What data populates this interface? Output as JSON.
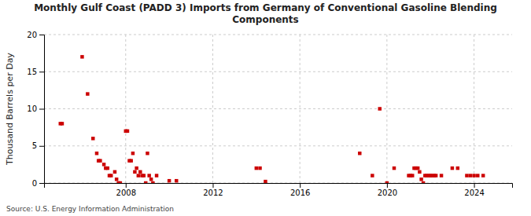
{
  "chart_data": {
    "type": "scatter",
    "title": "Monthly Gulf Coast (PADD 3) Imports from Germany of Conventional Gasoline Blending\nComponents",
    "y_label": "Thousand Barrels per Day",
    "annotations": [
      "Source: U.S. Energy Information Administration"
    ],
    "color": "#cc0000",
    "marker": "square",
    "grid": true,
    "xlim": [
      2004.25,
      2025.75
    ],
    "xticks": [
      2008,
      2012,
      2016,
      2020,
      2024
    ],
    "ylim": [
      0,
      20
    ],
    "yticks": [
      0,
      5,
      10,
      15,
      20
    ],
    "x": [
      2005.0,
      2005.08,
      2006.0,
      2006.25,
      2006.5,
      2006.67,
      2006.75,
      2006.83,
      2007.0,
      2007.08,
      2007.17,
      2007.25,
      2007.33,
      2007.5,
      2007.58,
      2007.67,
      2007.75,
      2008.0,
      2008.08,
      2008.17,
      2008.25,
      2008.33,
      2008.42,
      2008.5,
      2008.58,
      2008.67,
      2008.75,
      2008.83,
      2008.92,
      2009.0,
      2009.08,
      2009.17,
      2009.25,
      2009.42,
      2010.0,
      2010.33,
      2014.0,
      2014.17,
      2014.42,
      2018.75,
      2019.33,
      2019.67,
      2020.0,
      2020.33,
      2021.0,
      2021.08,
      2021.17,
      2021.25,
      2021.33,
      2021.42,
      2021.5,
      2021.58,
      2021.67,
      2021.75,
      2021.83,
      2021.92,
      2022.0,
      2022.08,
      2022.17,
      2022.25,
      2022.5,
      2023.0,
      2023.25,
      2023.67,
      2023.83,
      2024.0,
      2024.17,
      2024.42
    ],
    "values": [
      8.0,
      8.0,
      17.0,
      12.0,
      6.0,
      4.0,
      3.0,
      3.0,
      2.5,
      2.0,
      2.0,
      1.0,
      1.0,
      1.5,
      0.5,
      0.0,
      0.0,
      7.0,
      7.0,
      3.0,
      3.0,
      4.0,
      1.5,
      2.0,
      1.0,
      1.5,
      1.0,
      1.0,
      0.0,
      4.0,
      1.0,
      0.5,
      0.0,
      1.0,
      0.3,
      0.3,
      2.0,
      2.0,
      0.2,
      4.0,
      1.0,
      10.0,
      0.0,
      2.0,
      1.0,
      1.0,
      1.0,
      2.0,
      2.0,
      2.0,
      1.5,
      0.5,
      0.0,
      1.0,
      1.0,
      1.0,
      1.0,
      1.0,
      1.0,
      1.0,
      1.0,
      2.0,
      2.0,
      1.0,
      1.0,
      1.0,
      1.0,
      1.0
    ]
  }
}
